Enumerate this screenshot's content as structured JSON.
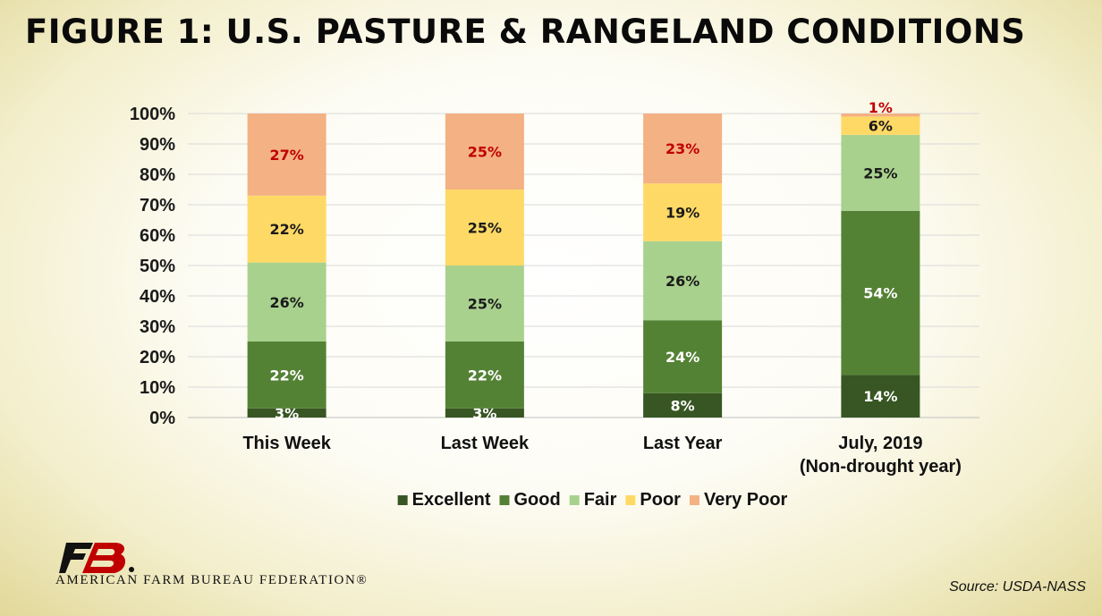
{
  "title": "FIGURE 1: U.S. PASTURE & RANGELAND CONDITIONS",
  "chart_data": {
    "type": "bar",
    "stacked": true,
    "categories": [
      "This Week",
      "Last Week",
      "Last Year",
      "July, 2019"
    ],
    "category_sublabels": [
      "",
      "",
      "",
      "(Non-drought year)"
    ],
    "series": [
      {
        "name": "Excellent",
        "color": "#375623",
        "values": [
          3,
          3,
          8,
          14
        ],
        "labels": [
          "3%",
          "3%",
          "8%",
          "14%"
        ]
      },
      {
        "name": "Good",
        "color": "#548235",
        "values": [
          22,
          22,
          24,
          54
        ],
        "labels": [
          "22%",
          "22%",
          "24%",
          "54%"
        ]
      },
      {
        "name": "Fair",
        "color": "#a9d18e",
        "values": [
          26,
          25,
          26,
          25
        ],
        "labels": [
          "26%",
          "25%",
          "26%",
          "25%"
        ]
      },
      {
        "name": "Poor",
        "color": "#ffd966",
        "values": [
          22,
          25,
          19,
          6
        ],
        "labels": [
          "22%",
          "25%",
          "19%",
          "6%"
        ]
      },
      {
        "name": "Very Poor",
        "color": "#f4b183",
        "values": [
          27,
          25,
          23,
          1
        ],
        "labels": [
          "27%",
          "25%",
          "23%",
          "1%"
        ]
      }
    ],
    "label_colors": [
      "#ffffff",
      "#ffffff",
      "#1a1a1a",
      "#1a1a1a",
      "#c00000"
    ],
    "yticks": [
      "0%",
      "10%",
      "20%",
      "30%",
      "40%",
      "50%",
      "60%",
      "70%",
      "80%",
      "90%",
      "100%"
    ],
    "ylim": [
      0,
      100
    ],
    "grid": true,
    "legend_position": "bottom"
  },
  "brand": {
    "name": "AMERICAN FARM BUREAU FEDERATION®",
    "logo_icon": "fb-logo-icon",
    "logo_color": "#c00000"
  },
  "source": "Source: USDA-NASS"
}
